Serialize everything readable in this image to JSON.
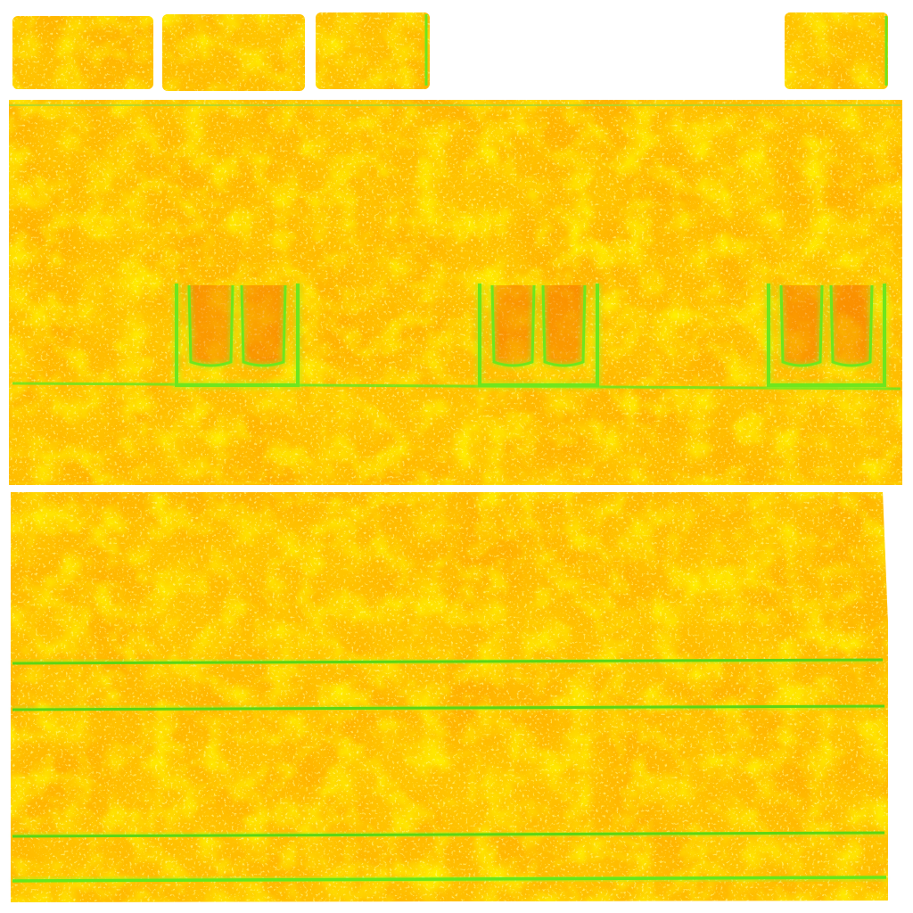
{
  "texture": {
    "colors": {
      "background": "#ffffff",
      "base_yellow": "#ffc800",
      "bright_yellow": "#ffe600",
      "orange": "#ff9a00",
      "deep_orange": "#ff6a00",
      "red_orange": "#f04a00",
      "seam_green": "#6ee61e",
      "seam_green_bright": "#8cff2a",
      "speckle": "#ffff66"
    },
    "panels": {
      "top_tabs_count": 4,
      "upper_band_count": 1,
      "slot_groups_count": 3,
      "slots_per_group": 2,
      "lower_band_count": 1,
      "horizontal_seam_lines_count": 4
    }
  }
}
